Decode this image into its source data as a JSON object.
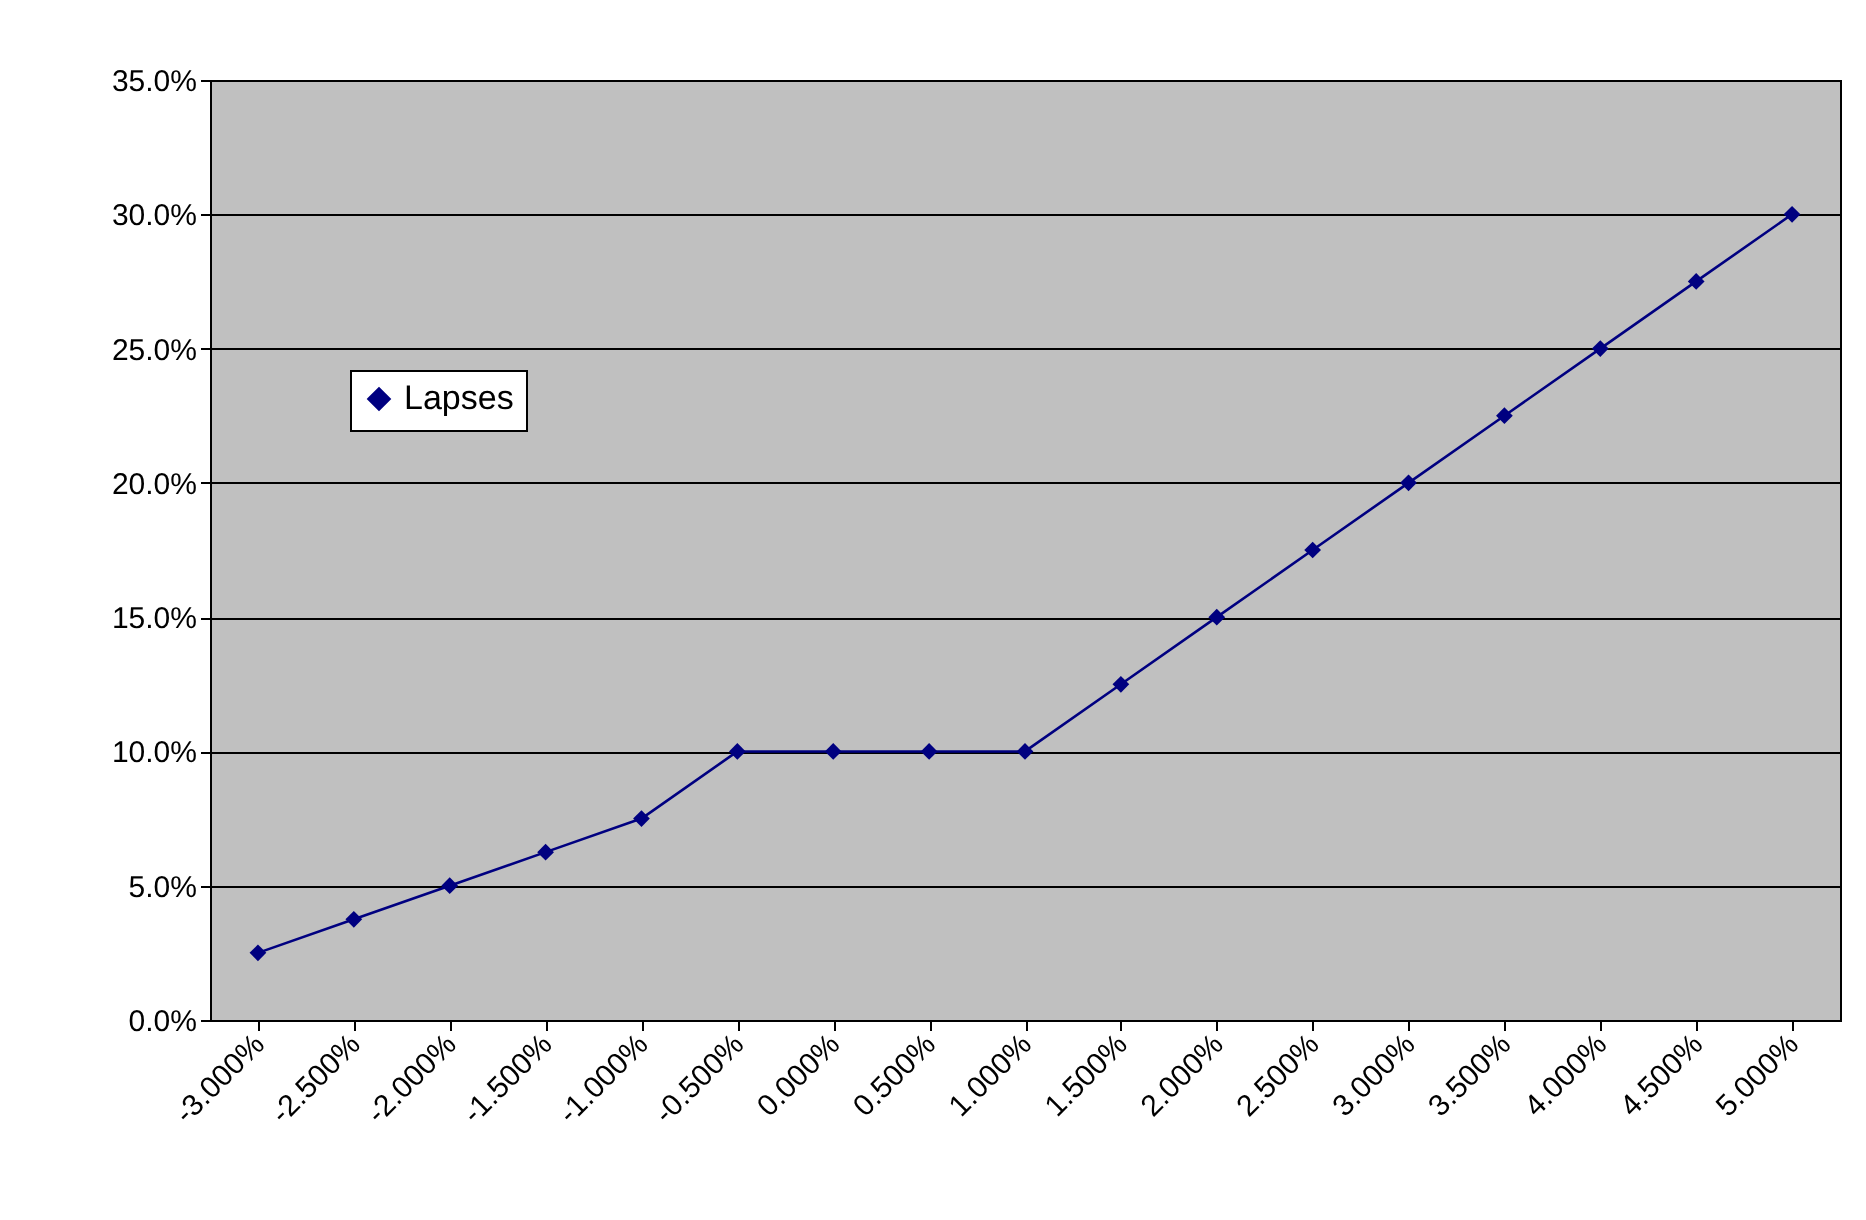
{
  "chart_data": {
    "type": "line",
    "categories": [
      "-3.000%",
      "-2.500%",
      "-2.000%",
      "-1.500%",
      "-1.000%",
      "-0.500%",
      "0.000%",
      "0.500%",
      "1.000%",
      "1.500%",
      "2.000%",
      "2.500%",
      "3.000%",
      "3.500%",
      "4.000%",
      "4.500%",
      "5.000%"
    ],
    "series": [
      {
        "name": "Lapses",
        "color": "#000080",
        "values": [
          2.5,
          3.75,
          5,
          6.25,
          7.5,
          10,
          10,
          10,
          10,
          12.5,
          15,
          17.5,
          20,
          22.5,
          25,
          27.5,
          30
        ]
      }
    ],
    "ylim": [
      0,
      35
    ],
    "yticks": [
      {
        "value": 0,
        "label": "0.0%"
      },
      {
        "value": 5,
        "label": "5.0%"
      },
      {
        "value": 10,
        "label": "10.0%"
      },
      {
        "value": 15,
        "label": "15.0%"
      },
      {
        "value": 20,
        "label": "20.0%"
      },
      {
        "value": 25,
        "label": "25.0%"
      },
      {
        "value": 30,
        "label": "30.0%"
      },
      {
        "value": 35,
        "label": "35.0%"
      }
    ],
    "grid": "y",
    "legend": "top left",
    "marker": "diamond",
    "line_style": "solid"
  }
}
